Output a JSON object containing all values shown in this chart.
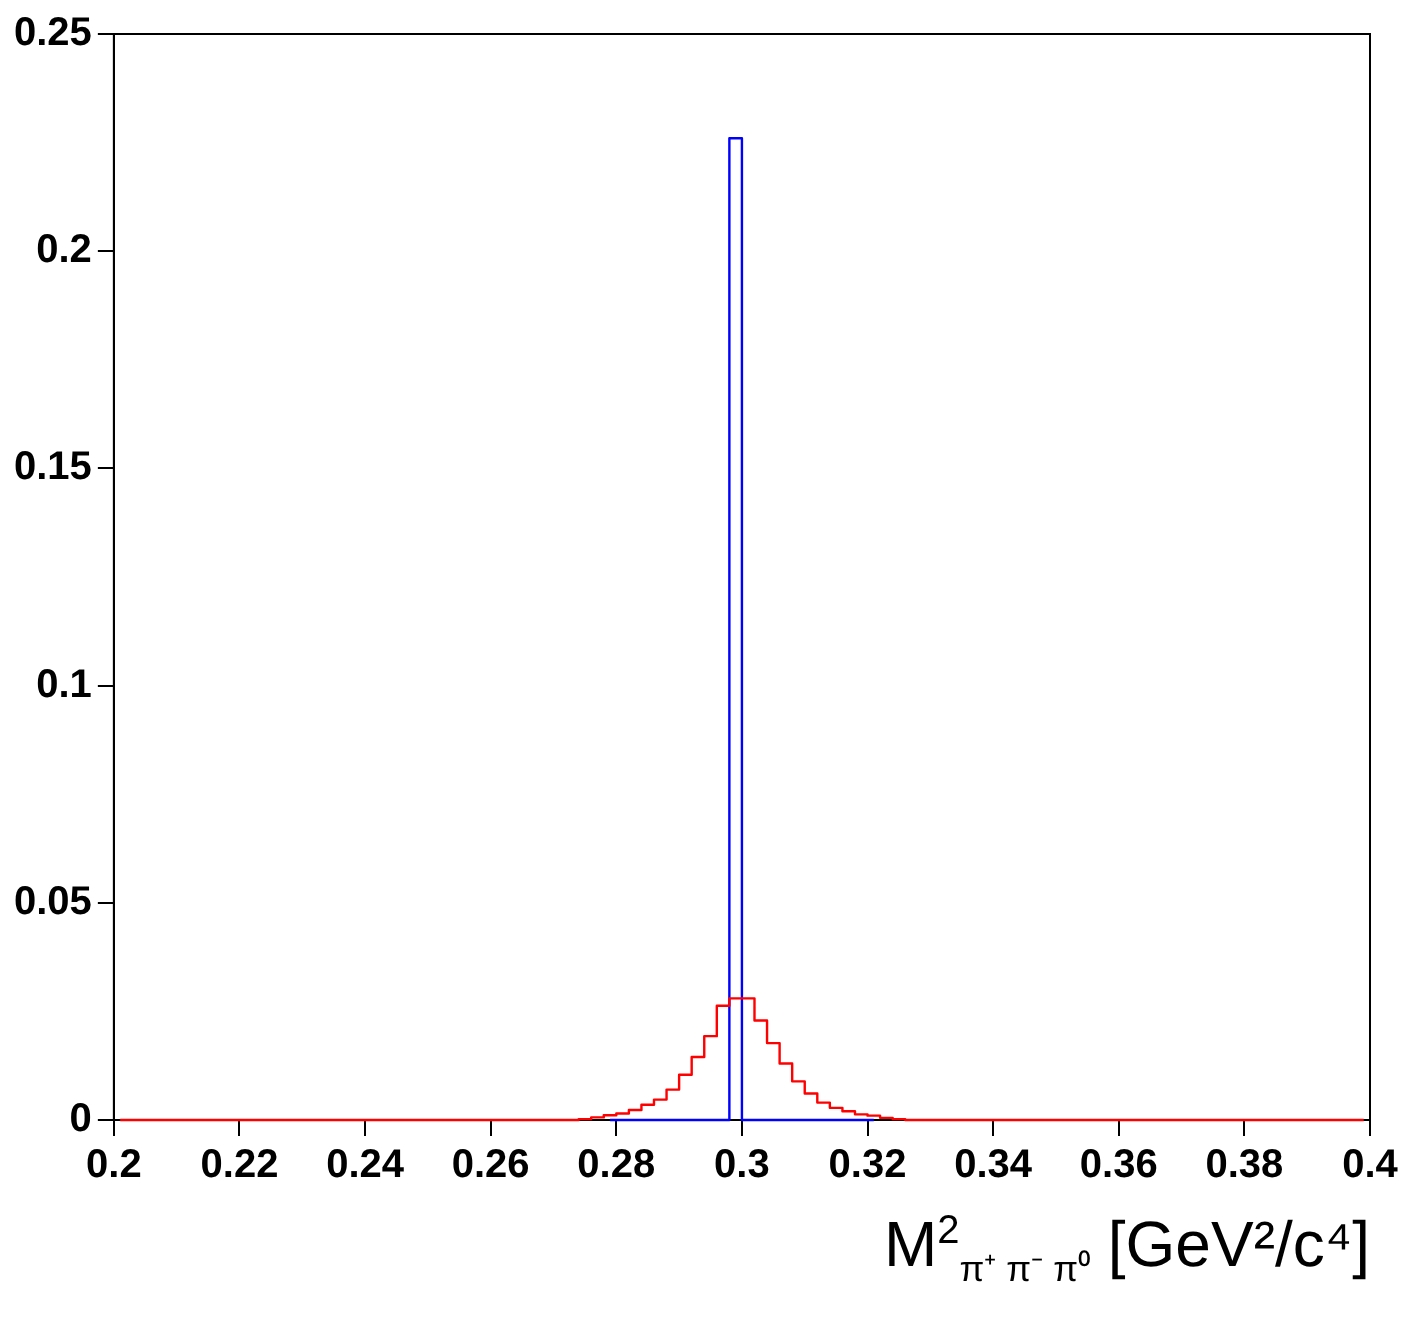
{
  "chart_data": {
    "type": "step",
    "xlabel": "M$^{2}$$_{π⁺ π⁻ π⁰}$ [GeV²/c⁴]",
    "x": [
      0.201,
      0.203,
      0.205,
      0.207,
      0.209,
      0.211,
      0.213,
      0.215,
      0.217,
      0.219,
      0.221,
      0.223,
      0.225,
      0.227,
      0.229,
      0.231,
      0.233,
      0.235,
      0.237,
      0.239,
      0.241,
      0.243,
      0.245,
      0.247,
      0.249,
      0.251,
      0.253,
      0.255,
      0.257,
      0.259,
      0.261,
      0.263,
      0.265,
      0.267,
      0.269,
      0.271,
      0.273,
      0.275,
      0.277,
      0.279,
      0.281,
      0.283,
      0.285,
      0.287,
      0.289,
      0.291,
      0.293,
      0.295,
      0.297,
      0.299,
      0.301,
      0.303,
      0.305,
      0.307,
      0.309,
      0.311,
      0.313,
      0.315,
      0.317,
      0.319,
      0.321,
      0.323,
      0.325,
      0.327,
      0.329,
      0.331,
      0.333,
      0.335,
      0.337,
      0.339,
      0.341,
      0.343,
      0.345,
      0.347,
      0.349,
      0.351,
      0.353,
      0.355,
      0.357,
      0.359,
      0.361,
      0.363,
      0.365,
      0.367,
      0.369,
      0.371,
      0.373,
      0.375,
      0.377,
      0.379,
      0.381,
      0.383,
      0.385,
      0.387,
      0.389,
      0.391,
      0.393,
      0.395,
      0.397,
      0.399
    ],
    "series": [
      {
        "color": "#ff0000",
        "values": [
          0,
          0,
          0,
          0,
          0,
          0,
          0,
          0,
          0,
          0,
          0,
          0,
          0,
          0,
          0,
          0,
          0,
          0,
          0,
          0,
          0,
          0,
          0,
          0,
          0,
          0,
          0,
          0,
          0,
          0,
          0,
          0,
          0,
          0,
          0,
          0,
          0,
          0.0002,
          0.0006,
          0.0011,
          0.0015,
          0.0023,
          0.0035,
          0.0047,
          0.007,
          0.0104,
          0.0145,
          0.0193,
          0.0263,
          0.028,
          0.028,
          0.0229,
          0.0177,
          0.013,
          0.0089,
          0.0061,
          0.004,
          0.0028,
          0.002,
          0.0013,
          0.001,
          0.0005,
          0.0002,
          0,
          0,
          0,
          0,
          0,
          0,
          0,
          0,
          0,
          0,
          0,
          0,
          0,
          0,
          0,
          0,
          0,
          0,
          0,
          0,
          0,
          0,
          0,
          0,
          0,
          0,
          0,
          0,
          0,
          0,
          0,
          0,
          0,
          0,
          0,
          0,
          0
        ]
      },
      {
        "color": "#0000ff",
        "values": [
          null,
          null,
          null,
          null,
          null,
          null,
          null,
          null,
          null,
          null,
          null,
          null,
          null,
          null,
          null,
          null,
          null,
          null,
          null,
          null,
          null,
          null,
          null,
          null,
          null,
          null,
          null,
          null,
          null,
          null,
          null,
          null,
          null,
          null,
          null,
          null,
          null,
          null,
          null,
          0,
          0,
          0,
          0,
          0,
          0,
          0,
          0,
          0,
          0,
          0.226,
          0,
          0,
          0,
          0,
          0,
          0,
          0,
          0,
          0,
          0,
          0,
          null,
          null,
          null,
          null,
          null,
          null,
          null,
          null,
          null,
          null,
          null,
          null,
          null,
          null,
          null,
          null,
          null,
          null,
          null,
          null,
          null,
          null,
          null,
          null,
          null,
          null,
          null,
          null,
          null,
          null,
          null,
          null,
          null,
          null,
          null,
          null,
          null,
          null,
          null
        ]
      }
    ],
    "xlim": [
      0.2,
      0.4
    ],
    "xticks": [
      0.2,
      0.22,
      0.24,
      0.26,
      0.28,
      0.3,
      0.32,
      0.34,
      0.36,
      0.38,
      0.4
    ],
    "ylim": [
      0,
      0.25
    ],
    "yticks": [
      0,
      0.05,
      0.1,
      0.15,
      0.2,
      0.25
    ],
    "grid": false,
    "legend": false
  }
}
